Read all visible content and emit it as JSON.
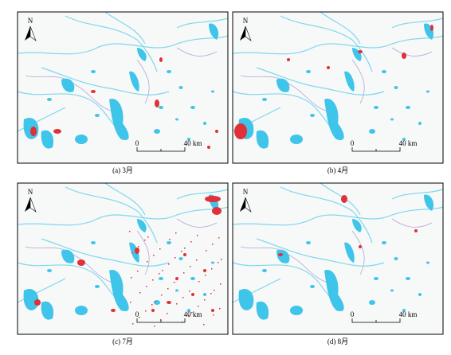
{
  "panels": [
    {
      "caption": "(a) 3月",
      "north": "N",
      "scale_start": "0",
      "scale_end": "40 km"
    },
    {
      "caption": "(b) 4月",
      "north": "N",
      "scale_start": "0",
      "scale_end": "40 km"
    },
    {
      "caption": "(c) 7月",
      "north": "N",
      "scale_start": "0",
      "scale_end": "40 km"
    },
    {
      "caption": "(d) 8月",
      "north": "N",
      "scale_start": "0",
      "scale_end": "40 km"
    }
  ]
}
